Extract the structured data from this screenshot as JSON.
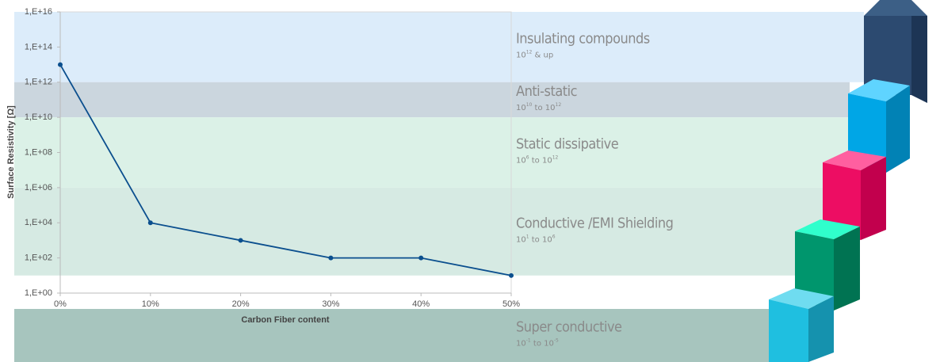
{
  "chart_data": {
    "type": "line",
    "x_label": "Carbon Fiber content",
    "y_label": "Surface Resistivity [Ω]",
    "log_y": true,
    "xlim": [
      0,
      50
    ],
    "xticks": [
      {
        "value": 0,
        "label": "0%"
      },
      {
        "value": 10,
        "label": "10%"
      },
      {
        "value": 20,
        "label": "20%"
      },
      {
        "value": 30,
        "label": "30%"
      },
      {
        "value": 40,
        "label": "40%"
      },
      {
        "value": 50,
        "label": "50%"
      }
    ],
    "ylim": [
      1,
      1e+16
    ],
    "yticks": [
      {
        "value": 1,
        "label": "1,E+00"
      },
      {
        "value": 100,
        "label": "1,E+02"
      },
      {
        "value": 10000,
        "label": "1,E+04"
      },
      {
        "value": 1000000,
        "label": "1,E+06"
      },
      {
        "value": 100000000,
        "label": "1,E+08"
      },
      {
        "value": 10000000000,
        "label": "1,E+10"
      },
      {
        "value": 1000000000000,
        "label": "1,E+12"
      },
      {
        "value": 100000000000000,
        "label": "1,E+14"
      },
      {
        "value": 1e+16,
        "label": "1,E+16"
      }
    ],
    "series": [
      {
        "color": "#0b4f8e",
        "x": [
          0,
          10,
          20,
          30,
          40,
          50
        ],
        "values": [
          10000000000000.0,
          10000,
          1000,
          100,
          100,
          10
        ]
      }
    ],
    "bands": [
      {
        "label": "Insulating compounds",
        "range": [
          "10",
          "12",
          " & up"
        ],
        "from": 1000000000000,
        "color": "#dcecfa"
      },
      {
        "label": "Anti-static",
        "range": [
          "10",
          "10",
          " to 10",
          "12"
        ],
        "from": 10000000000,
        "color": "#cbd6de"
      },
      {
        "label": "Static dissipative",
        "range": [
          "10",
          "6",
          " to 10",
          "12"
        ],
        "from": 1000000,
        "color": "#dbf1e7"
      },
      {
        "label": "Conductive /EMI Shielding",
        "range": [
          "10",
          "1",
          " to 10",
          "6"
        ],
        "from": 10,
        "color": "#d6eae3"
      },
      {
        "label": "Super conductive",
        "range": [
          "10",
          "-1",
          " to 10",
          "-5"
        ],
        "color": "#a7c5be"
      }
    ]
  }
}
